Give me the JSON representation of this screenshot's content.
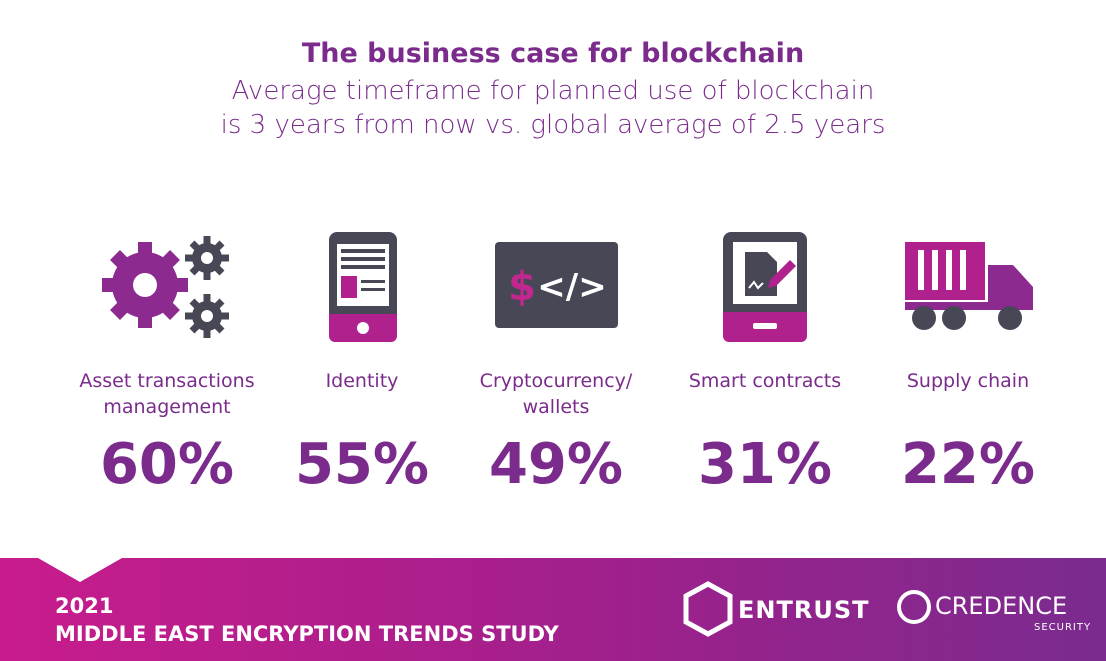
{
  "header": {
    "title": "The business case for blockchain",
    "subtitle": [
      "Average timeframe for planned use of blockchain",
      "is 3 years from now vs. global average of 2.5 years"
    ]
  },
  "items": [
    {
      "label": [
        "Asset transactions",
        "management"
      ],
      "value": "60%"
    },
    {
      "label": [
        "Identity"
      ],
      "value": "55%"
    },
    {
      "label": [
        "Cryptocurrency/",
        "wallets"
      ],
      "value": "49%"
    },
    {
      "label": [
        "Smart contracts"
      ],
      "value": "31%"
    },
    {
      "label": [
        "Supply chain"
      ],
      "value": "22%"
    }
  ],
  "footer": {
    "year": "2021",
    "study": "MIDDLE EAST ENCRYPTION TRENDS STUDY",
    "logos": {
      "entrust": "ENTRUST",
      "credence": "CREDENCE",
      "credence_sub": "SECURITY"
    }
  }
}
